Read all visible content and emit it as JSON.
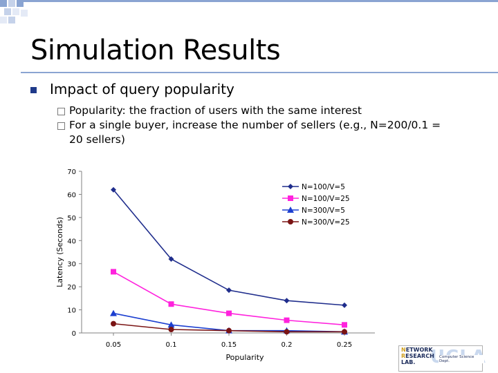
{
  "slide": {
    "title": "Simulation Results",
    "bullet": "Impact of query popularity",
    "sub_bullets": [
      "Popularity: the fraction of users with the same interest",
      "For a single buyer, increase the number of sellers (e.g., N=200/0.1 = 20 sellers)"
    ]
  },
  "chart_data": {
    "type": "line",
    "title": "",
    "xlabel": "Popularity",
    "ylabel": "Latency (Seconds)",
    "x": [
      0.05,
      0.1,
      0.15,
      0.2,
      0.25
    ],
    "x_tick_labels": [
      "0.05",
      "0.1",
      "0.15",
      "0.2",
      "0.25"
    ],
    "y_ticks": [
      0,
      10,
      20,
      30,
      40,
      50,
      60,
      70
    ],
    "ylim": [
      0,
      70
    ],
    "grid": false,
    "legend_position": "top-right",
    "series": [
      {
        "name": "N=100/V=5",
        "color": "#1f2d8c",
        "marker": "diamond",
        "values": [
          62,
          32,
          18.5,
          14,
          12
        ]
      },
      {
        "name": "N=100/V=25",
        "color": "#ff22dd",
        "marker": "square",
        "values": [
          26.5,
          12.5,
          8.5,
          5.5,
          3.5
        ]
      },
      {
        "name": "N=300/V=5",
        "color": "#1c3fd0",
        "marker": "triangle",
        "values": [
          8.5,
          3.5,
          1,
          1,
          0.5
        ]
      },
      {
        "name": "N=300/V=25",
        "color": "#7a1414",
        "marker": "circle",
        "values": [
          4,
          1.5,
          1,
          0.5,
          0.5
        ]
      }
    ]
  },
  "logo": {
    "line1_cap": "N",
    "line1_rest": "ETWORK",
    "line2_cap": "R",
    "line2_rest": "ESEARCH",
    "line3_rest": "LAB.",
    "ucla": "UCLA",
    "dept": "Computer Science Dept."
  }
}
